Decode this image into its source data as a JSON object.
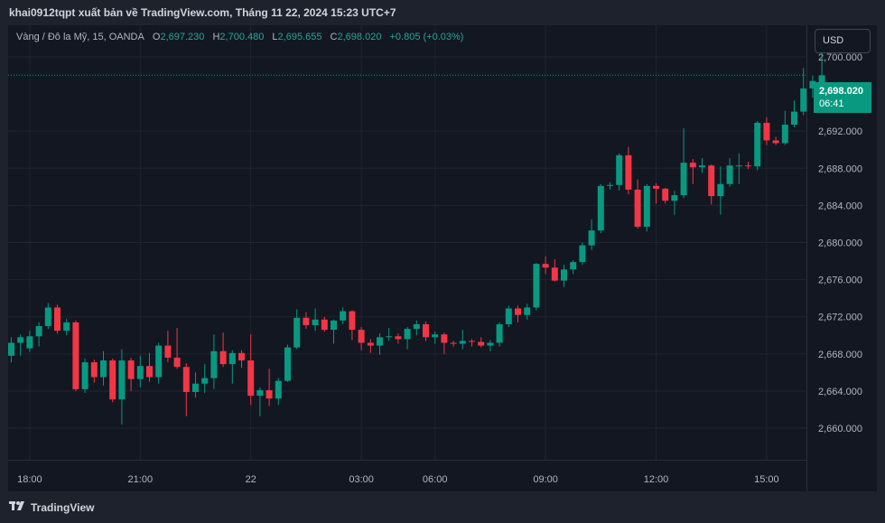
{
  "header": {
    "text": "khai0912tqpt xuất bản về TradingView.com, Tháng 11 22, 2024 15:23 UTC+7"
  },
  "legend": {
    "symbol": "Vàng / Đô la Mỹ, 15, OANDA",
    "o_label": "O",
    "o_value": "2,697.230",
    "h_label": "H",
    "h_value": "2,700.480",
    "l_label": "L",
    "l_value": "2,695.655",
    "c_label": "C",
    "c_value": "2,698.020",
    "change": "+0.805 (+0.03%)"
  },
  "currency_button": "USD",
  "last_price": {
    "value": "2,698.020",
    "countdown": "06:41"
  },
  "footer": {
    "logo_icon": "tradingview-logo-icon",
    "logo_text": "TradingView"
  },
  "colors": {
    "up": "#089981",
    "down": "#f23645",
    "background": "#131722",
    "grid": "#1f2430",
    "text": "#b2b5be"
  },
  "chart_data": {
    "type": "candlestick",
    "title": "Vàng / Đô la Mỹ, 15, OANDA",
    "currency": "USD",
    "y_ticks": [
      "2,660.000",
      "2,664.000",
      "2,668.000",
      "2,672.000",
      "2,676.000",
      "2,680.000",
      "2,684.000",
      "2,688.000",
      "2,692.000",
      "2,700.000"
    ],
    "y_tick_values": [
      2660,
      2664,
      2668,
      2672,
      2676,
      2680,
      2684,
      2688,
      2692,
      2700
    ],
    "x_ticks": [
      {
        "label": "18:00",
        "bar": 2
      },
      {
        "label": "21:00",
        "bar": 14
      },
      {
        "label": "22",
        "bar": 26
      },
      {
        "label": "03:00",
        "bar": 38
      },
      {
        "label": "06:00",
        "bar": 46
      },
      {
        "label": "09:00",
        "bar": 58
      },
      {
        "label": "12:00",
        "bar": 70
      },
      {
        "label": "15:00",
        "bar": 82
      }
    ],
    "ylim": [
      2656.6,
      2703.4
    ],
    "last_price": 2698.02,
    "candles": [
      [
        2667.8,
        2669.8,
        2667.1,
        2669.2
      ],
      [
        2669.2,
        2670.1,
        2667.8,
        2669.8
      ],
      [
        2668.6,
        2670.5,
        2668.2,
        2669.9
      ],
      [
        2669.9,
        2671.4,
        2668.8,
        2671.0
      ],
      [
        2671.0,
        2673.5,
        2670.7,
        2673.0
      ],
      [
        2673.0,
        2673.3,
        2670.2,
        2670.5
      ],
      [
        2670.5,
        2671.8,
        2670.0,
        2671.4
      ],
      [
        2671.4,
        2671.6,
        2664.0,
        2664.2
      ],
      [
        2664.2,
        2667.5,
        2663.8,
        2667.1
      ],
      [
        2667.1,
        2667.4,
        2664.9,
        2665.5
      ],
      [
        2665.5,
        2668.3,
        2664.6,
        2667.3
      ],
      [
        2667.3,
        2667.5,
        2662.8,
        2663.1
      ],
      [
        2663.1,
        2668.5,
        2660.4,
        2667.3
      ],
      [
        2667.3,
        2667.6,
        2664.0,
        2665.3
      ],
      [
        2665.3,
        2667.8,
        2664.4,
        2666.7
      ],
      [
        2666.7,
        2668.1,
        2665.0,
        2665.5
      ],
      [
        2665.5,
        2669.2,
        2664.8,
        2668.9
      ],
      [
        2668.9,
        2670.5,
        2667.1,
        2667.6
      ],
      [
        2667.6,
        2670.8,
        2666.4,
        2666.6
      ],
      [
        2666.6,
        2667.0,
        2661.3,
        2663.9
      ],
      [
        2663.9,
        2666.0,
        2663.3,
        2664.8
      ],
      [
        2664.8,
        2666.9,
        2663.8,
        2665.4
      ],
      [
        2665.4,
        2670.1,
        2664.2,
        2668.3
      ],
      [
        2668.3,
        2670.3,
        2666.6,
        2666.9
      ],
      [
        2666.9,
        2668.4,
        2664.8,
        2668.1
      ],
      [
        2668.1,
        2668.4,
        2666.5,
        2667.3
      ],
      [
        2667.3,
        2670.1,
        2662.5,
        2663.5
      ],
      [
        2663.5,
        2664.4,
        2661.3,
        2664.1
      ],
      [
        2664.1,
        2666.4,
        2662.4,
        2663.2
      ],
      [
        2663.2,
        2665.4,
        2662.5,
        2665.1
      ],
      [
        2665.1,
        2669.0,
        2665.0,
        2668.7
      ],
      [
        2668.7,
        2672.8,
        2668.5,
        2671.9
      ],
      [
        2671.9,
        2672.5,
        2670.7,
        2671.1
      ],
      [
        2671.1,
        2672.9,
        2670.5,
        2671.7
      ],
      [
        2671.7,
        2672.0,
        2670.4,
        2670.6
      ],
      [
        2670.6,
        2671.7,
        2669.1,
        2671.6
      ],
      [
        2671.6,
        2673.0,
        2671.2,
        2672.6
      ],
      [
        2672.6,
        2672.7,
        2669.5,
        2670.6
      ],
      [
        2670.6,
        2670.9,
        2668.4,
        2669.2
      ],
      [
        2669.2,
        2669.6,
        2668.1,
        2668.9
      ],
      [
        2668.9,
        2670.2,
        2667.9,
        2669.8
      ],
      [
        2669.8,
        2670.8,
        2669.4,
        2669.9
      ],
      [
        2669.9,
        2670.2,
        2669.1,
        2669.6
      ],
      [
        2669.6,
        2670.9,
        2668.5,
        2670.7
      ],
      [
        2670.7,
        2671.6,
        2670.0,
        2671.2
      ],
      [
        2671.2,
        2671.5,
        2669.4,
        2669.8
      ],
      [
        2669.8,
        2670.4,
        2669.1,
        2670.1
      ],
      [
        2670.1,
        2670.3,
        2668.0,
        2669.2
      ],
      [
        2669.2,
        2669.4,
        2668.8,
        2669.1
      ],
      [
        2669.1,
        2670.6,
        2668.5,
        2669.4
      ],
      [
        2669.4,
        2669.6,
        2668.8,
        2669.3
      ],
      [
        2669.3,
        2669.8,
        2668.7,
        2668.9
      ],
      [
        2668.9,
        2669.5,
        2668.3,
        2669.2
      ],
      [
        2669.2,
        2671.4,
        2668.8,
        2671.2
      ],
      [
        2671.2,
        2673.2,
        2670.9,
        2672.9
      ],
      [
        2672.9,
        2673.2,
        2671.4,
        2672.2
      ],
      [
        2672.2,
        2673.4,
        2671.7,
        2673.0
      ],
      [
        2673.0,
        2677.8,
        2672.7,
        2677.7
      ],
      [
        2677.7,
        2678.5,
        2676.6,
        2677.3
      ],
      [
        2677.3,
        2678.2,
        2675.8,
        2675.9
      ],
      [
        2675.9,
        2677.6,
        2675.2,
        2677.1
      ],
      [
        2677.1,
        2678.1,
        2676.6,
        2677.9
      ],
      [
        2677.9,
        2680.0,
        2677.6,
        2679.7
      ],
      [
        2679.7,
        2682.5,
        2679.2,
        2681.3
      ],
      [
        2681.3,
        2686.3,
        2681.0,
        2686.1
      ],
      [
        2686.1,
        2686.5,
        2685.7,
        2686.2
      ],
      [
        2686.2,
        2689.6,
        2685.6,
        2689.4
      ],
      [
        2689.4,
        2690.3,
        2685.2,
        2685.7
      ],
      [
        2685.7,
        2686.8,
        2681.5,
        2681.7
      ],
      [
        2681.7,
        2686.3,
        2681.2,
        2686.1
      ],
      [
        2686.1,
        2686.4,
        2684.2,
        2685.8
      ],
      [
        2685.8,
        2685.9,
        2684.2,
        2684.5
      ],
      [
        2684.5,
        2685.6,
        2683.0,
        2685.1
      ],
      [
        2685.1,
        2692.3,
        2684.8,
        2688.6
      ],
      [
        2688.6,
        2689.0,
        2686.3,
        2688.1
      ],
      [
        2688.1,
        2689.1,
        2687.5,
        2688.3
      ],
      [
        2688.3,
        2688.4,
        2684.1,
        2685.0
      ],
      [
        2685.0,
        2688.2,
        2683.0,
        2686.3
      ],
      [
        2686.3,
        2689.1,
        2686.0,
        2688.3
      ],
      [
        2688.3,
        2689.6,
        2686.3,
        2688.3
      ],
      [
        2688.3,
        2688.7,
        2687.9,
        2688.2
      ],
      [
        2688.2,
        2693.1,
        2687.8,
        2692.9
      ],
      [
        2692.9,
        2693.5,
        2690.5,
        2691.0
      ],
      [
        2691.0,
        2691.4,
        2690.5,
        2690.7
      ],
      [
        2690.7,
        2694.2,
        2690.5,
        2692.7
      ],
      [
        2692.7,
        2695.3,
        2692.4,
        2694.1
      ],
      [
        2694.1,
        2698.8,
        2693.7,
        2696.6
      ],
      [
        2696.6,
        2698.0,
        2695.6,
        2697.4
      ],
      [
        2697.23,
        2700.48,
        2695.655,
        2698.02
      ]
    ]
  }
}
